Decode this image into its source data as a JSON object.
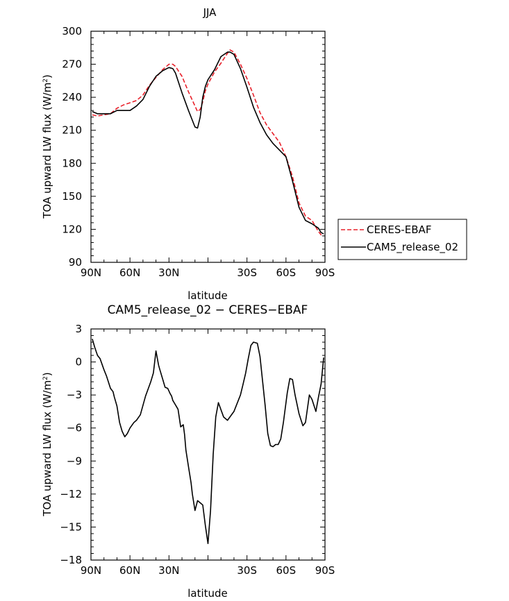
{
  "chart_data": [
    {
      "type": "line",
      "title": "JJA",
      "xlabel": "latitude",
      "ylabel": "TOA upward LW flux (W/m",
      "ylabel_sup": "2",
      "ylabel_tail": ")",
      "xlim": [
        90,
        -90
      ],
      "ylim": [
        90,
        300
      ],
      "x_ticks": [
        90,
        60,
        30,
        0,
        -30,
        -60,
        -90
      ],
      "x_tick_labels": [
        "90N",
        "60N",
        "30N",
        "",
        "30S",
        "60S",
        "90S"
      ],
      "y_ticks": [
        90,
        120,
        150,
        180,
        210,
        240,
        270,
        300
      ],
      "y_tick_labels": [
        "90",
        "120",
        "150",
        "180",
        "210",
        "240",
        "270",
        "300"
      ],
      "series": [
        {
          "name": "CERES-EBAF",
          "color": "#e8202a",
          "dash": "dashed",
          "x": [
            89,
            85,
            80,
            75,
            70,
            65,
            60,
            55,
            50,
            45,
            40,
            35,
            30,
            27,
            25,
            20,
            15,
            10,
            8,
            6,
            4,
            2,
            0,
            -5,
            -10,
            -15,
            -17,
            -20,
            -25,
            -30,
            -35,
            -40,
            -45,
            -50,
            -55,
            -60,
            -65,
            -70,
            -75,
            -80,
            -85,
            -87,
            -89
          ],
          "values": [
            224,
            223,
            224,
            225,
            230,
            233,
            235,
            237,
            242,
            251,
            258,
            265,
            270,
            270,
            268,
            259,
            245,
            232,
            227,
            229,
            236,
            246,
            252,
            263,
            271,
            280,
            283,
            281,
            270,
            257,
            242,
            226,
            215,
            207,
            199,
            186,
            168,
            144,
            132,
            128,
            118,
            115,
            115
          ]
        },
        {
          "name": "CAM5_release_02",
          "color": "#000000",
          "dash": "solid",
          "x": [
            89,
            85,
            80,
            75,
            70,
            65,
            60,
            55,
            50,
            45,
            40,
            35,
            30,
            27,
            25,
            20,
            15,
            10,
            8,
            6,
            4,
            2,
            0,
            -5,
            -10,
            -15,
            -17,
            -20,
            -25,
            -30,
            -35,
            -40,
            -45,
            -50,
            -55,
            -60,
            -65,
            -70,
            -75,
            -80,
            -85,
            -87,
            -89
          ],
          "values": [
            227,
            225,
            225,
            225,
            228,
            228,
            228,
            232,
            238,
            250,
            259,
            264,
            267,
            266,
            262,
            244,
            228,
            213,
            212,
            222,
            240,
            250,
            256,
            265,
            277,
            281,
            281,
            279,
            266,
            249,
            231,
            217,
            206,
            198,
            192,
            186,
            164,
            140,
            128,
            125,
            121,
            117,
            116
          ]
        }
      ],
      "legend": "right",
      "grid": false
    },
    {
      "type": "line",
      "title": "CAM5_release_02 − CERES−EBAF",
      "xlabel": "latitude",
      "ylabel": "TOA upward LW flux (W/m",
      "ylabel_sup": "2",
      "ylabel_tail": ")",
      "xlim": [
        90,
        -90
      ],
      "ylim": [
        -18,
        3
      ],
      "x_ticks": [
        90,
        60,
        30,
        0,
        -30,
        -60,
        -90
      ],
      "x_tick_labels": [
        "90N",
        "60N",
        "30N",
        "",
        "30S",
        "60S",
        "90S"
      ],
      "y_ticks": [
        -18,
        -15,
        -12,
        -9,
        -6,
        -3,
        0,
        3
      ],
      "y_tick_labels": [
        "−18",
        "−15",
        "−12",
        "−9",
        "−6",
        "−3",
        "0",
        "3"
      ],
      "series": [
        {
          "name": "CAM5_release_02 − CERES−EBAF",
          "color": "#000000",
          "dash": "solid",
          "x": [
            89,
            87,
            85,
            83,
            80,
            78,
            75,
            73,
            72,
            70,
            68,
            66,
            64,
            62,
            60,
            57,
            55,
            52,
            48,
            44,
            42,
            40,
            38,
            37,
            35,
            33,
            31,
            29,
            28,
            27,
            25,
            23,
            21,
            19,
            18,
            17,
            15,
            13,
            12,
            10,
            8,
            6,
            4,
            2,
            0,
            -2,
            -4,
            -6,
            -8,
            -12,
            -15,
            -20,
            -25,
            -27,
            -29,
            -31,
            -33,
            -35,
            -38,
            -40,
            -44,
            -46,
            -48,
            -50,
            -52,
            -54,
            -56,
            -58,
            -61,
            -63,
            -65,
            -67,
            -70,
            -73,
            -75,
            -78,
            -80,
            -83,
            -85,
            -87,
            -89
          ],
          "values": [
            2.1,
            1.3,
            0.6,
            0.3,
            -0.7,
            -1.3,
            -2.4,
            -2.7,
            -3.2,
            -4.0,
            -5.5,
            -6.3,
            -6.8,
            -6.5,
            -6.0,
            -5.5,
            -5.3,
            -4.8,
            -3.1,
            -1.8,
            -1.0,
            1.0,
            -0.3,
            -0.7,
            -1.5,
            -2.3,
            -2.4,
            -2.9,
            -3.1,
            -3.5,
            -3.9,
            -4.3,
            -5.9,
            -5.7,
            -6.6,
            -8.0,
            -9.5,
            -11.0,
            -12.0,
            -13.5,
            -12.6,
            -12.8,
            -13.0,
            -14.9,
            -16.5,
            -13.5,
            -8.4,
            -5.0,
            -3.7,
            -5.0,
            -5.3,
            -4.5,
            -3.0,
            -2.0,
            -1.0,
            0.3,
            1.5,
            1.8,
            1.7,
            0.5,
            -4.0,
            -6.5,
            -7.6,
            -7.7,
            -7.5,
            -7.5,
            -7.0,
            -5.5,
            -2.8,
            -1.5,
            -1.6,
            -3.0,
            -4.7,
            -5.8,
            -5.5,
            -3.0,
            -3.4,
            -4.5,
            -3.2,
            -2.0,
            0.4
          ]
        }
      ],
      "legend": "none",
      "grid": false
    }
  ]
}
